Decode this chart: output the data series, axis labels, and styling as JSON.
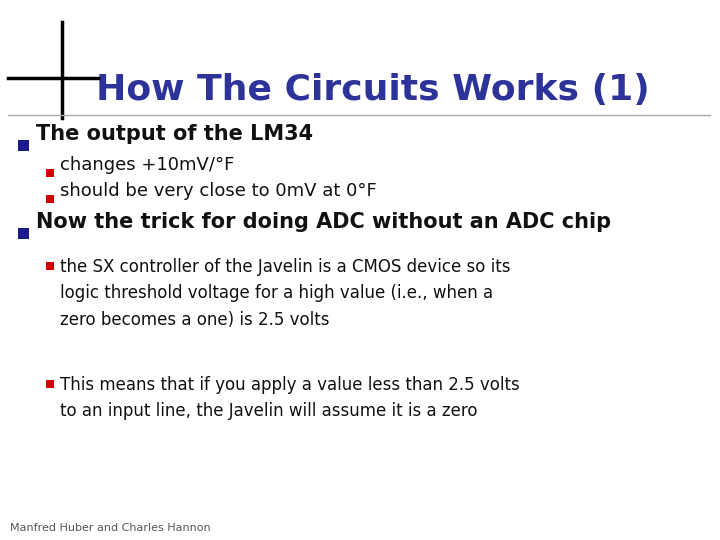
{
  "title": "How The Circuits Works (1)",
  "title_color": "#2E3399",
  "background_color": "#FFFFFF",
  "sub_bullet1a": "changes +10mV/°F",
  "sub_bullet1b": "should be very close to 0mV at 0°F",
  "bullet1_text": "The output of the LM34",
  "bullet2_text": "Now the trick for doing ADC without an ADC chip",
  "sub_bullet2a": "the SX controller of the Javelin is a CMOS device so its\nlogic threshold voltage for a high value (i.e., when a\nzero becomes a one) is 2.5 volts",
  "sub_bullet2b": "This means that if you apply a value less than 2.5 volts\nto an input line, the Javelin will assume it is a zero",
  "footer": "Manfred Huber and Charles Hannon",
  "bullet_square_color": "#1A1A8C",
  "sub_bullet_square_color": "#CC0000",
  "deco_yellow": "#FFD700",
  "deco_red": "#FF6666",
  "deco_blue": "#1A1A8C",
  "line_color": "#AAAAAA"
}
